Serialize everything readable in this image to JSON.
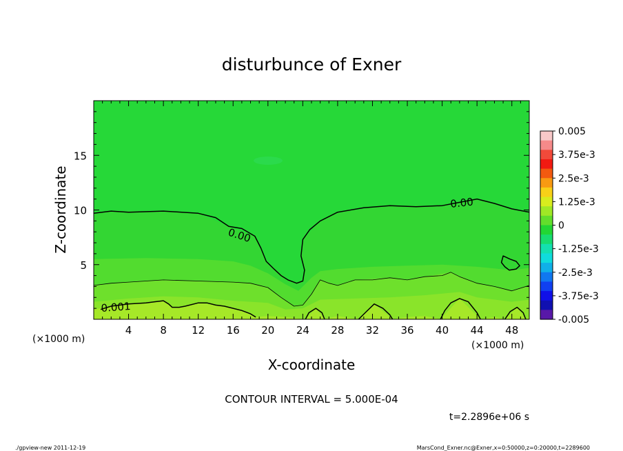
{
  "chart_data": {
    "type": "contour",
    "title": "disturbunce of Exner",
    "xlabel": "X-coordinate",
    "ylabel": "Z-coordinate",
    "x_unit_left": "(×1000 m)",
    "x_unit_right": "(×1000 m)",
    "xlim": [
      0,
      50
    ],
    "ylim": [
      0,
      20
    ],
    "xticks": [
      4,
      8,
      12,
      16,
      20,
      24,
      28,
      32,
      36,
      40,
      44,
      48
    ],
    "xtick_labels": [
      "4",
      "8",
      "12",
      "16",
      "20",
      "24",
      "28",
      "32",
      "36",
      "40",
      "44",
      "48"
    ],
    "yticks": [
      5,
      10,
      15
    ],
    "ytick_labels": [
      "5",
      "10",
      "15"
    ],
    "contour_interval_text": "CONTOUR INTERVAL = 5.000E-04",
    "time_text": "t=2.2896e+06 s",
    "contour_labels": [
      "0.00",
      "0.00",
      "0.001"
    ],
    "contours": [
      {
        "level": 0.0,
        "points": [
          [
            0,
            9.7
          ],
          [
            2,
            9.9
          ],
          [
            4,
            9.8
          ],
          [
            8,
            9.9
          ],
          [
            12,
            9.7
          ],
          [
            14,
            9.3
          ],
          [
            15.5,
            8.5
          ],
          [
            17,
            8.3
          ],
          [
            18.5,
            7.6
          ],
          [
            19.2,
            6.5
          ],
          [
            19.8,
            5.3
          ],
          [
            20.7,
            4.6
          ],
          [
            21.5,
            4.0
          ],
          [
            22.3,
            3.6
          ],
          [
            23.3,
            3.3
          ],
          [
            24,
            3.5
          ],
          [
            24.2,
            4.5
          ],
          [
            23.8,
            5.8
          ],
          [
            24,
            7.3
          ],
          [
            24.8,
            8.2
          ],
          [
            26,
            9.0
          ],
          [
            28,
            9.8
          ],
          [
            31,
            10.2
          ],
          [
            34,
            10.4
          ],
          [
            37,
            10.3
          ],
          [
            40,
            10.4
          ],
          [
            42,
            10.7
          ],
          [
            44,
            11.0
          ],
          [
            46,
            10.6
          ],
          [
            48,
            10.1
          ],
          [
            50,
            9.8
          ]
        ]
      },
      {
        "level": 0.0,
        "closed": true,
        "points": [
          [
            47,
            5.8
          ],
          [
            47.8,
            5.5
          ],
          [
            48.5,
            5.3
          ],
          [
            48.9,
            4.9
          ],
          [
            48.5,
            4.6
          ],
          [
            47.7,
            4.5
          ],
          [
            47.2,
            4.8
          ],
          [
            46.8,
            5.2
          ],
          [
            47,
            5.8
          ]
        ]
      },
      {
        "level": 0.0005,
        "thin": true,
        "points": [
          [
            0,
            3.1
          ],
          [
            2,
            3.3
          ],
          [
            4,
            3.4
          ],
          [
            6,
            3.5
          ],
          [
            8,
            3.6
          ],
          [
            12,
            3.5
          ],
          [
            16,
            3.4
          ],
          [
            18,
            3.3
          ],
          [
            20,
            2.9
          ],
          [
            21.5,
            2.0
          ],
          [
            23,
            1.2
          ],
          [
            24,
            1.3
          ],
          [
            25,
            2.3
          ],
          [
            26,
            3.6
          ],
          [
            27,
            3.3
          ],
          [
            28,
            3.1
          ],
          [
            30,
            3.6
          ],
          [
            32,
            3.6
          ],
          [
            34,
            3.8
          ],
          [
            36,
            3.6
          ],
          [
            38,
            3.9
          ],
          [
            40,
            4.0
          ],
          [
            41,
            4.3
          ],
          [
            42,
            3.9
          ],
          [
            44,
            3.3
          ],
          [
            46,
            3.0
          ],
          [
            48,
            2.6
          ],
          [
            50,
            3.1
          ]
        ]
      },
      {
        "level": 0.001,
        "points": [
          [
            0.8,
            0.9
          ],
          [
            2,
            1.2
          ],
          [
            4,
            1.4
          ],
          [
            6,
            1.5
          ],
          [
            7,
            1.6
          ],
          [
            8,
            1.7
          ],
          [
            8.6,
            1.4
          ],
          [
            9,
            1.1
          ],
          [
            9.8,
            1.1
          ],
          [
            10.5,
            1.2
          ],
          [
            12,
            1.5
          ],
          [
            13,
            1.5
          ],
          [
            14,
            1.3
          ],
          [
            15,
            1.2
          ],
          [
            16,
            1.0
          ],
          [
            17,
            0.8
          ],
          [
            18,
            0.5
          ],
          [
            18.6,
            0.2
          ]
        ]
      },
      {
        "level": 0.001,
        "points": [
          [
            24.3,
            0
          ],
          [
            24.7,
            0.6
          ],
          [
            25.5,
            1.0
          ],
          [
            26.2,
            0.6
          ],
          [
            26.5,
            0
          ]
        ]
      },
      {
        "level": 0.001,
        "points": [
          [
            30.4,
            0
          ],
          [
            31.3,
            0.7
          ],
          [
            32.2,
            1.4
          ],
          [
            33.2,
            1.0
          ],
          [
            34,
            0.4
          ],
          [
            34.3,
            0
          ]
        ]
      },
      {
        "level": 0.001,
        "points": [
          [
            39.8,
            0
          ],
          [
            40.3,
            0.8
          ],
          [
            41,
            1.5
          ],
          [
            42,
            1.9
          ],
          [
            43,
            1.6
          ],
          [
            44,
            0.6
          ],
          [
            44.4,
            0
          ]
        ]
      },
      {
        "level": 0.001,
        "points": [
          [
            47.2,
            0
          ],
          [
            47.8,
            0.7
          ],
          [
            48.6,
            1.1
          ],
          [
            49.3,
            0.6
          ],
          [
            49.6,
            0
          ]
        ]
      }
    ],
    "shading_bands": [
      {
        "color": "#33d633",
        "points": [
          [
            0,
            9.8
          ],
          [
            2,
            9.9
          ],
          [
            8,
            9.9
          ],
          [
            12,
            9.7
          ],
          [
            15.5,
            8.5
          ],
          [
            18.5,
            7.6
          ],
          [
            19.8,
            5.3
          ],
          [
            22.3,
            3.6
          ],
          [
            23.3,
            3.3
          ],
          [
            24,
            3.5
          ],
          [
            24.2,
            4.5
          ],
          [
            23.8,
            5.8
          ],
          [
            24,
            7.3
          ],
          [
            26,
            9.0
          ],
          [
            28,
            9.8
          ],
          [
            34,
            10.4
          ],
          [
            40,
            10.4
          ],
          [
            44,
            11.0
          ],
          [
            48,
            10.1
          ],
          [
            50,
            9.8
          ]
        ]
      },
      {
        "color": "#52dc2f",
        "points": [
          [
            0,
            5.5
          ],
          [
            6,
            5.6
          ],
          [
            12,
            5.5
          ],
          [
            16,
            5.3
          ],
          [
            18,
            4.9
          ],
          [
            20,
            4.2
          ],
          [
            22,
            3.2
          ],
          [
            23.5,
            2.6
          ],
          [
            25,
            3.8
          ],
          [
            26,
            4.4
          ],
          [
            28,
            4.6
          ],
          [
            32,
            4.8
          ],
          [
            36,
            4.9
          ],
          [
            40,
            5.0
          ],
          [
            44,
            4.8
          ],
          [
            48,
            4.5
          ],
          [
            50,
            4.7
          ]
        ]
      },
      {
        "color": "#6ee02c",
        "points": [
          [
            0,
            3.1
          ],
          [
            4,
            3.4
          ],
          [
            8,
            3.6
          ],
          [
            12,
            3.5
          ],
          [
            16,
            3.4
          ],
          [
            18,
            3.3
          ],
          [
            20,
            2.9
          ],
          [
            21.5,
            2.0
          ],
          [
            23,
            1.2
          ],
          [
            24,
            1.3
          ],
          [
            25,
            2.3
          ],
          [
            26,
            3.6
          ],
          [
            28,
            3.1
          ],
          [
            30,
            3.6
          ],
          [
            34,
            3.8
          ],
          [
            36,
            3.6
          ],
          [
            38,
            3.9
          ],
          [
            41,
            4.3
          ],
          [
            42,
            3.9
          ],
          [
            44,
            3.3
          ],
          [
            48,
            2.6
          ],
          [
            50,
            3.1
          ]
        ]
      },
      {
        "color": "#8ae42a",
        "points": [
          [
            0,
            1.6
          ],
          [
            4,
            1.9
          ],
          [
            8,
            2.1
          ],
          [
            12,
            2.0
          ],
          [
            16,
            1.7
          ],
          [
            20,
            1.5
          ],
          [
            22,
            0.9
          ],
          [
            24,
            1.0
          ],
          [
            26,
            1.8
          ],
          [
            30,
            1.9
          ],
          [
            34,
            2.0
          ],
          [
            38,
            2.2
          ],
          [
            42,
            2.5
          ],
          [
            44,
            2.0
          ],
          [
            48,
            1.6
          ],
          [
            50,
            1.8
          ]
        ]
      },
      {
        "color": "#a6e828",
        "points": [
          [
            0,
            0.9
          ],
          [
            2,
            1.2
          ],
          [
            4,
            1.4
          ],
          [
            7,
            1.6
          ],
          [
            8,
            1.7
          ],
          [
            9,
            1.1
          ],
          [
            10.5,
            1.2
          ],
          [
            12,
            1.5
          ],
          [
            14,
            1.3
          ],
          [
            16,
            1.0
          ],
          [
            18,
            0.5
          ],
          [
            18.6,
            0.2
          ],
          [
            20,
            0.3
          ],
          [
            22,
            0.2
          ],
          [
            24.3,
            0
          ],
          [
            25.5,
            1.0
          ],
          [
            26.5,
            0
          ],
          [
            28,
            0.3
          ],
          [
            30.4,
            0
          ],
          [
            32.2,
            1.4
          ],
          [
            34.3,
            0
          ],
          [
            36,
            0.2
          ],
          [
            38,
            0.3
          ],
          [
            39.8,
            0
          ],
          [
            42,
            1.9
          ],
          [
            44.4,
            0
          ],
          [
            46,
            0.2
          ],
          [
            47.2,
            0
          ],
          [
            48.6,
            1.1
          ],
          [
            49.6,
            0
          ],
          [
            50,
            0.2
          ]
        ]
      }
    ],
    "colorbar": {
      "labels": [
        "0.005",
        "3.75e-3",
        "2.5e-3",
        "1.25e-3",
        "0",
        "-1.25e-3",
        "-2.5e-3",
        "-3.75e-3",
        "-0.005"
      ],
      "colors_top_to_bottom": [
        "#f8c8c8",
        "#f58a8a",
        "#f24a3a",
        "#f21a12",
        "#f25a10",
        "#f89a12",
        "#f8d018",
        "#d8ec1e",
        "#a0e826",
        "#62de2c",
        "#22d633",
        "#18dc70",
        "#14e0b0",
        "#10dcdc",
        "#10b0e8",
        "#1078f0",
        "#1040f0",
        "#1010e8",
        "#1010b0",
        "#5818a8"
      ]
    }
  },
  "footer": {
    "left": "./gpview-new   2011-12-19",
    "right": "MarsCond_Exner.nc@Exner,x=0:50000,z=0:20000,t=2289600"
  }
}
